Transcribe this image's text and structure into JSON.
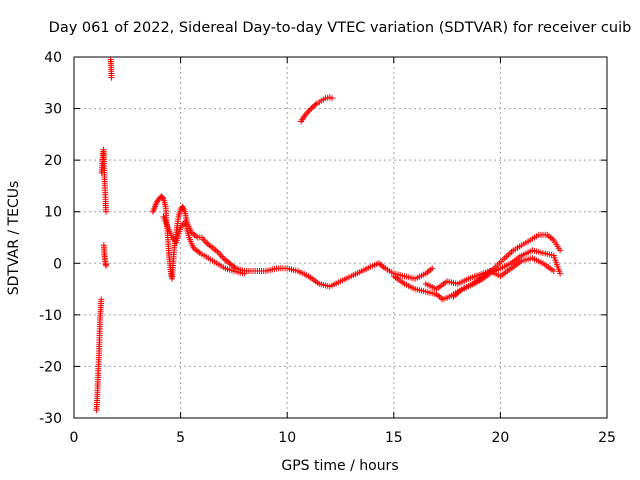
{
  "chart_data": {
    "type": "scatter",
    "title": "Day 061 of 2022, Sidereal Day-to-day VTEC variation (SDTVAR) for receiver cuib",
    "xlabel": "GPS time / hours",
    "ylabel": "SDTVAR / TECUs",
    "xlim": [
      0,
      25
    ],
    "ylim": [
      -30,
      40
    ],
    "x_ticks": [
      0,
      5,
      10,
      15,
      20,
      25
    ],
    "y_ticks": [
      -30,
      -20,
      -10,
      0,
      10,
      20,
      30,
      40
    ],
    "grid": true,
    "marker": "+",
    "series_color": "#ff0000",
    "segments": [
      {
        "name": "early-1",
        "points": [
          [
            1.05,
            -28.5
          ],
          [
            1.08,
            -27
          ],
          [
            1.1,
            -25
          ],
          [
            1.12,
            -23
          ],
          [
            1.15,
            -20
          ],
          [
            1.18,
            -17
          ],
          [
            1.2,
            -14
          ],
          [
            1.22,
            -11
          ],
          [
            1.25,
            -9
          ],
          [
            1.28,
            -7
          ]
        ]
      },
      {
        "name": "early-2",
        "points": [
          [
            1.3,
            17.5
          ],
          [
            1.32,
            19
          ],
          [
            1.35,
            20.5
          ],
          [
            1.38,
            22
          ],
          [
            1.4,
            21
          ],
          [
            1.42,
            18
          ],
          [
            1.45,
            15
          ],
          [
            1.48,
            12
          ],
          [
            1.5,
            10
          ]
        ]
      },
      {
        "name": "early-3",
        "points": [
          [
            1.4,
            3.5
          ],
          [
            1.42,
            2
          ],
          [
            1.45,
            1
          ],
          [
            1.48,
            0
          ],
          [
            1.5,
            -0.5
          ]
        ]
      },
      {
        "name": "early-4",
        "points": [
          [
            1.72,
            39.5
          ],
          [
            1.74,
            38
          ],
          [
            1.76,
            36
          ]
        ]
      },
      {
        "name": "dawn",
        "points": [
          [
            3.7,
            10
          ],
          [
            3.8,
            11
          ],
          [
            3.9,
            12
          ],
          [
            4.0,
            12.5
          ],
          [
            4.1,
            13
          ],
          [
            4.2,
            12.5
          ],
          [
            4.3,
            11
          ],
          [
            4.35,
            8
          ],
          [
            4.4,
            5
          ],
          [
            4.45,
            2
          ],
          [
            4.5,
            0
          ],
          [
            4.55,
            -2
          ],
          [
            4.6,
            -3
          ],
          [
            4.65,
            0
          ],
          [
            4.7,
            3
          ],
          [
            4.8,
            6
          ],
          [
            4.9,
            9
          ],
          [
            5.0,
            10.5
          ],
          [
            5.1,
            11
          ],
          [
            5.2,
            10
          ],
          [
            5.3,
            8
          ],
          [
            5.5,
            6
          ],
          [
            5.8,
            5
          ],
          [
            6.0,
            5
          ],
          [
            6.2,
            4
          ],
          [
            6.5,
            3
          ],
          [
            6.8,
            2
          ],
          [
            7.0,
            1
          ],
          [
            7.3,
            0
          ],
          [
            7.6,
            -1
          ],
          [
            8.0,
            -1.5
          ],
          [
            8.5,
            -1.5
          ],
          [
            9.0,
            -1.5
          ],
          [
            9.5,
            -1
          ],
          [
            10.0,
            -1
          ],
          [
            10.5,
            -1.5
          ],
          [
            11.0,
            -2.5
          ],
          [
            11.5,
            -4
          ],
          [
            12.0,
            -4.5
          ],
          [
            12.5,
            -3.5
          ],
          [
            13.0,
            -2.5
          ],
          [
            13.5,
            -1.5
          ],
          [
            14.0,
            -0.5
          ],
          [
            14.3,
            0
          ],
          [
            14.6,
            -1
          ],
          [
            15.0,
            -2
          ],
          [
            15.5,
            -2.5
          ],
          [
            16.0,
            -3
          ],
          [
            16.5,
            -2
          ],
          [
            16.8,
            -1
          ]
        ]
      },
      {
        "name": "dawn-alt",
        "points": [
          [
            4.2,
            9
          ],
          [
            4.4,
            7
          ],
          [
            4.6,
            5
          ],
          [
            4.8,
            4
          ],
          [
            5.0,
            7
          ],
          [
            5.2,
            8
          ],
          [
            5.4,
            5
          ],
          [
            5.6,
            3
          ],
          [
            5.9,
            2
          ],
          [
            6.3,
            1
          ],
          [
            6.7,
            0
          ],
          [
            7.1,
            -1
          ],
          [
            7.5,
            -1.5
          ],
          [
            8.0,
            -2
          ]
        ]
      },
      {
        "name": "arc",
        "points": [
          [
            10.65,
            27.5
          ],
          [
            10.8,
            28.5
          ],
          [
            11.0,
            29.5
          ],
          [
            11.2,
            30.3
          ],
          [
            11.4,
            31
          ],
          [
            11.6,
            31.5
          ],
          [
            11.8,
            32
          ],
          [
            12.0,
            32.2
          ],
          [
            12.1,
            32
          ]
        ]
      },
      {
        "name": "evening-1",
        "points": [
          [
            15.0,
            -2.5
          ],
          [
            15.5,
            -4
          ],
          [
            16.0,
            -5
          ],
          [
            16.5,
            -5.5
          ],
          [
            17.0,
            -6
          ],
          [
            17.3,
            -7
          ],
          [
            17.6,
            -6.5
          ],
          [
            18.0,
            -5.5
          ],
          [
            18.5,
            -4.5
          ],
          [
            19.0,
            -3.5
          ],
          [
            19.5,
            -2
          ],
          [
            20.0,
            -1
          ],
          [
            20.5,
            0
          ],
          [
            21.0,
            1.5
          ],
          [
            21.5,
            2.5
          ],
          [
            22.0,
            2
          ],
          [
            22.5,
            1.5
          ],
          [
            22.8,
            -2
          ]
        ]
      },
      {
        "name": "evening-2",
        "points": [
          [
            17.8,
            -6.5
          ],
          [
            18.2,
            -5
          ],
          [
            18.7,
            -4
          ],
          [
            19.2,
            -2.5
          ],
          [
            19.7,
            -1
          ],
          [
            20.2,
            1
          ],
          [
            20.6,
            2.5
          ],
          [
            21.0,
            3.5
          ],
          [
            21.4,
            4.5
          ],
          [
            21.8,
            5.5
          ],
          [
            22.2,
            5.5
          ],
          [
            22.5,
            4.5
          ],
          [
            22.8,
            2.5
          ]
        ]
      },
      {
        "name": "evening-3",
        "points": [
          [
            16.5,
            -4
          ],
          [
            17.0,
            -5
          ],
          [
            17.5,
            -3.5
          ],
          [
            18.0,
            -4
          ],
          [
            18.5,
            -3
          ],
          [
            19.5,
            -1.5
          ],
          [
            20.0,
            -2.5
          ],
          [
            20.5,
            -1
          ],
          [
            21.0,
            0.5
          ],
          [
            21.5,
            1
          ],
          [
            22.0,
            0
          ],
          [
            22.5,
            -1.5
          ]
        ]
      }
    ]
  }
}
